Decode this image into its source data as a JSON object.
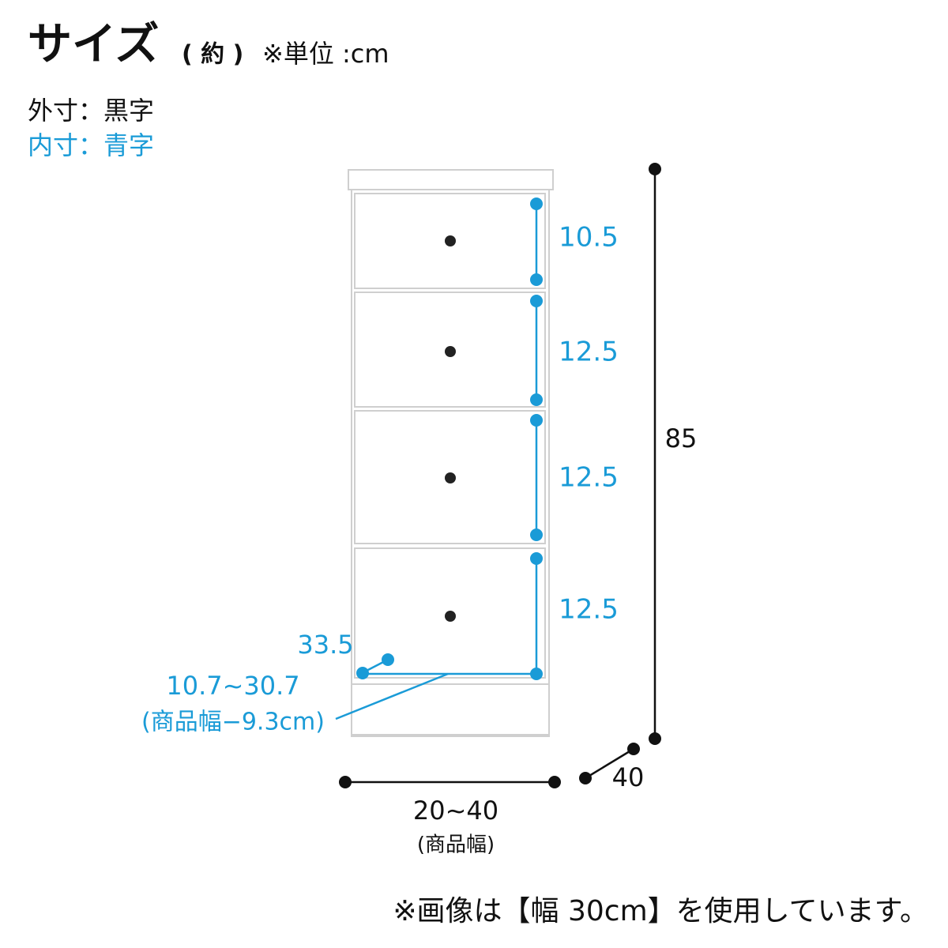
{
  "header": {
    "title": "サイズ",
    "note_open": "( 約 )",
    "note_unit": "※単位 :cm"
  },
  "legend": {
    "outer": "外寸：黒字",
    "inner": "内寸：青字"
  },
  "inner_dimensions": {
    "drawers": [
      "10.5",
      "12.5",
      "12.5",
      "12.5"
    ],
    "depth": "33.5",
    "width": "10.7~30.7",
    "width_note": "(商品幅−9.3cm)"
  },
  "outer_dimensions": {
    "height": "85",
    "depth": "40",
    "width": "20~40",
    "width_note": "(商品幅)"
  },
  "footer": "※画像は【幅 30cm】を使用しています。"
}
